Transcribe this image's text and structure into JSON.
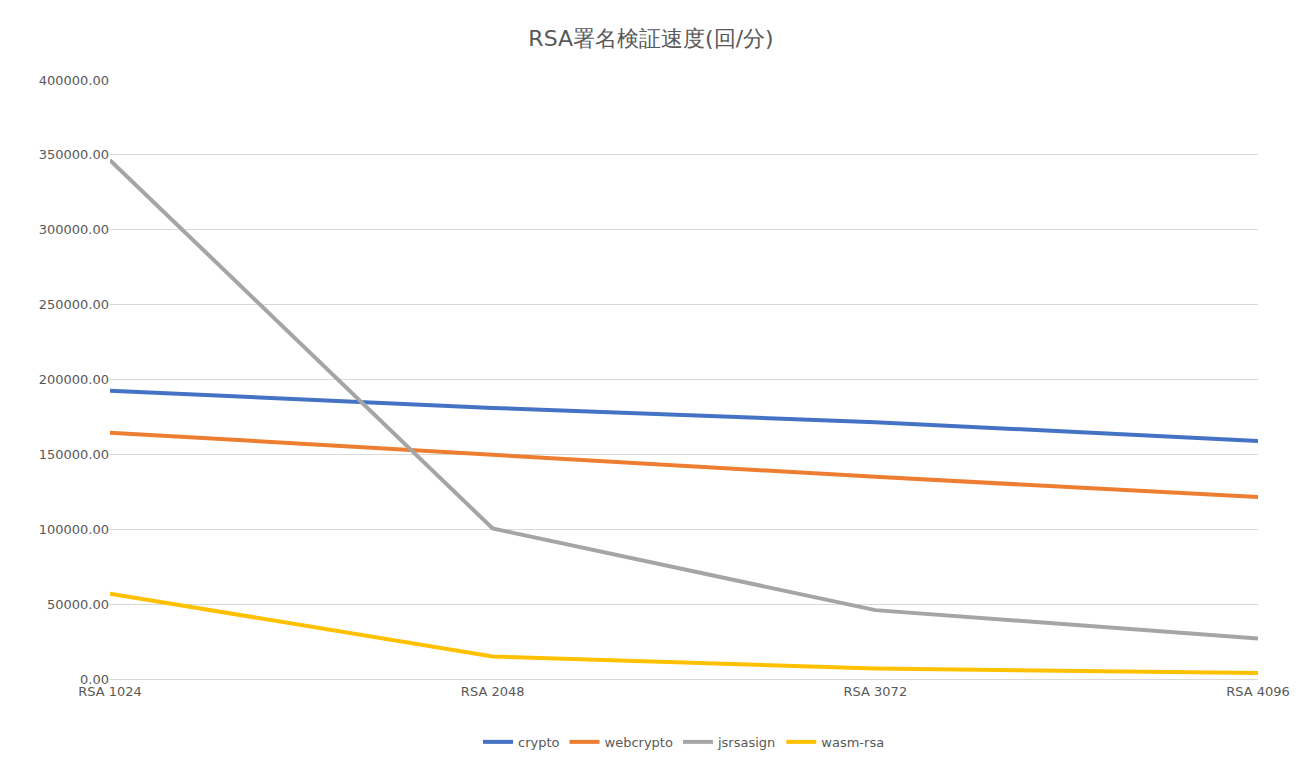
{
  "chart_data": {
    "type": "line",
    "title": "RSA署名検証速度(回/分)",
    "categories": [
      "RSA 1024",
      "RSA 2048",
      "RSA 3072",
      "RSA 4096"
    ],
    "series": [
      {
        "name": "crypto",
        "color": "#4472c4",
        "values": [
          192500,
          181000,
          171500,
          159000
        ]
      },
      {
        "name": "webcrypto",
        "color": "#ed7d31",
        "values": [
          164500,
          149500,
          135000,
          121500
        ]
      },
      {
        "name": "jsrsasign",
        "color": "#a5a5a5",
        "values": [
          346500,
          100500,
          46000,
          27000
        ]
      },
      {
        "name": "wasm-rsa",
        "color": "#ffc000",
        "values": [
          57000,
          15000,
          7000,
          4000
        ]
      }
    ],
    "ylim": [
      0,
      400000
    ],
    "yticks": [
      {
        "value": 0,
        "label": "0.00"
      },
      {
        "value": 50000,
        "label": "50000.00"
      },
      {
        "value": 100000,
        "label": "100000.00"
      },
      {
        "value": 150000,
        "label": "150000.00"
      },
      {
        "value": 200000,
        "label": "200000.00"
      },
      {
        "value": 250000,
        "label": "250000.00"
      },
      {
        "value": 300000,
        "label": "300000.00"
      },
      {
        "value": 350000,
        "label": "350000.00"
      },
      {
        "value": 400000,
        "label": "400000.00"
      }
    ],
    "grid": true,
    "legend": "bottom"
  }
}
